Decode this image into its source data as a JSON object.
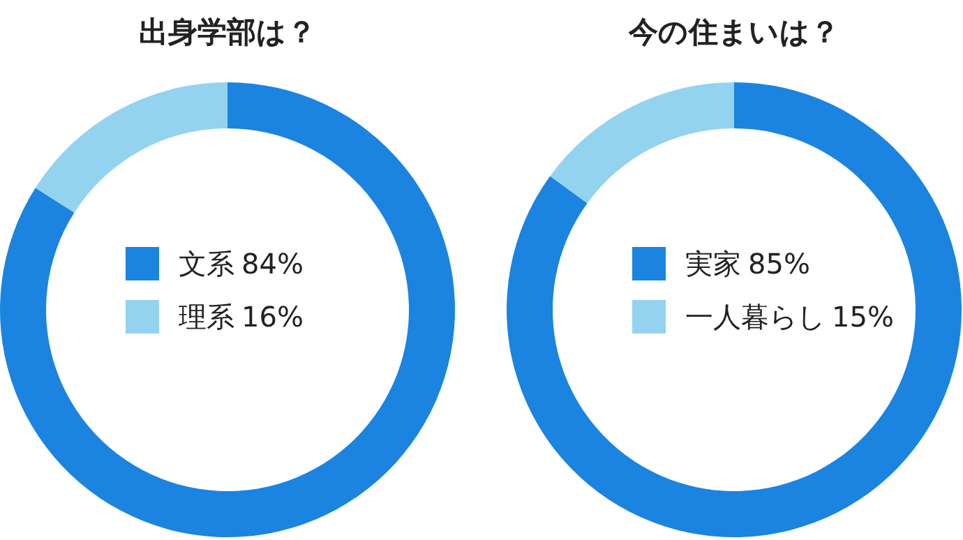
{
  "chart_data": [
    {
      "type": "donut",
      "title": "出身学部は？",
      "categories": [
        "文系",
        "理系"
      ],
      "values": [
        84,
        16
      ],
      "value_labels": [
        "84%",
        "16%"
      ],
      "colors": [
        "#1a84e0",
        "#93d3f0"
      ],
      "legend": "center"
    },
    {
      "type": "donut",
      "title": "今の住まいは？",
      "categories": [
        "実家",
        "一人暮らし"
      ],
      "values": [
        85,
        15
      ],
      "value_labels": [
        "85%",
        "15%"
      ],
      "colors": [
        "#1a84e0",
        "#93d3f0"
      ],
      "legend": "center"
    }
  ]
}
